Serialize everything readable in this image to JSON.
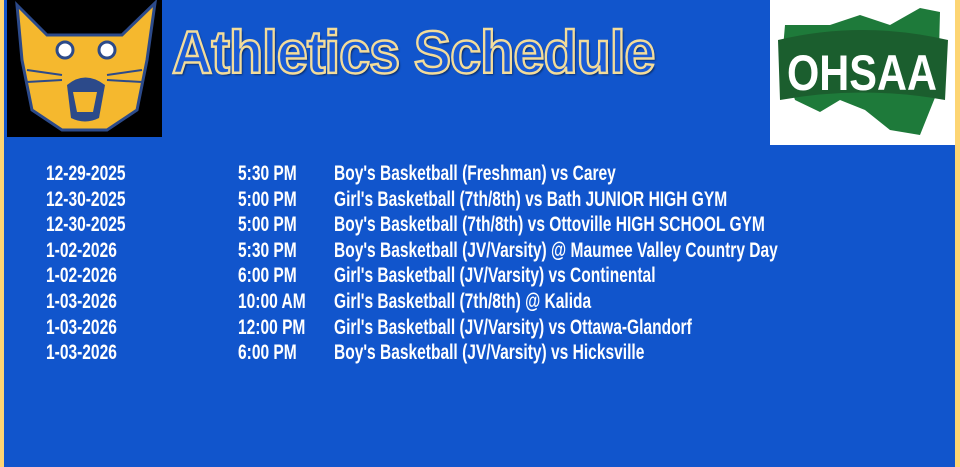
{
  "header": {
    "title": "Athletics Schedule",
    "left_logo": "bobcat-mascot",
    "right_logo_text": "OHSAA"
  },
  "colors": {
    "background": "#1155cc",
    "border": "#fdd573",
    "text": "#ffffff",
    "ohsaa_green": "#1e7a3a",
    "mascot_gold": "#f5b82e"
  },
  "schedule": [
    {
      "date": "12-29-2025",
      "time": "5:30 PM",
      "event": "Boy's Basketball (Freshman) vs Carey"
    },
    {
      "date": "12-30-2025",
      "time": "5:00 PM",
      "event": "Girl's Basketball (7th/8th) vs Bath JUNIOR HIGH GYM"
    },
    {
      "date": "12-30-2025",
      "time": "5:00 PM",
      "event": "Boy's Basketball (7th/8th) vs Ottoville HIGH SCHOOL GYM"
    },
    {
      "date": "1-02-2026",
      "time": "5:30 PM",
      "event": "Boy's Basketball (JV/Varsity) @ Maumee Valley Country Day"
    },
    {
      "date": "1-02-2026",
      "time": "6:00 PM",
      "event": "Girl's Basketball (JV/Varsity) vs Continental"
    },
    {
      "date": "1-03-2026",
      "time": "10:00 AM",
      "event": "Girl's Basketball (7th/8th) @ Kalida"
    },
    {
      "date": "1-03-2026",
      "time": "12:00 PM",
      "event": "Girl's Basketball (JV/Varsity) vs Ottawa-Glandorf"
    },
    {
      "date": "1-03-2026",
      "time": "6:00 PM",
      "event": "Boy's Basketball (JV/Varsity) vs Hicksville"
    }
  ]
}
